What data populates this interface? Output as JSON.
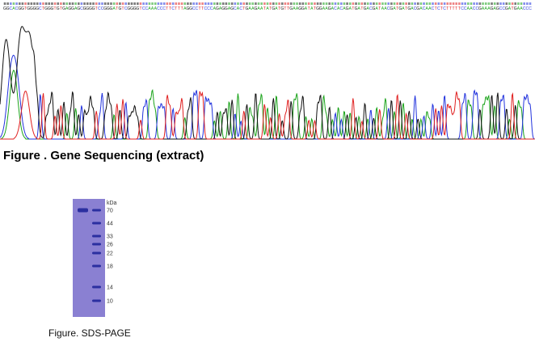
{
  "sequencing": {
    "caption": "Figure . Gene Sequencing (extract)",
    "base_colors": {
      "A": "#1aa31a",
      "C": "#2233dd",
      "G": "#111111",
      "T": "#e02020"
    },
    "sequence": "GGCACGGTGGGGCTGGGTGTGAGGAGCGGGGTCCGGGATGTCGGGGTCCAAACCCTTCTTTAGGCCTTCCCAGAGGAGCACTGAAGAATATGATGTTGAAGGATATGGAAGACACAGATGATGACGATAACGATGATGACGACAACTCTCTTTTTCCAACCGAAAGAGCCGATGAACCC",
    "visible_label_prefix": "G G C ACG G TG GGGCT GG"
  },
  "gel": {
    "caption": "Figure. SDS-PAGE",
    "unit_label": "kDa",
    "gel_color": "#8a80d2",
    "band_color": "#2b2fa0",
    "marker_bands_kda": [
      "70",
      "44",
      "33",
      "26",
      "22",
      "18",
      "14",
      "10"
    ],
    "sample_band_kda": "70"
  }
}
